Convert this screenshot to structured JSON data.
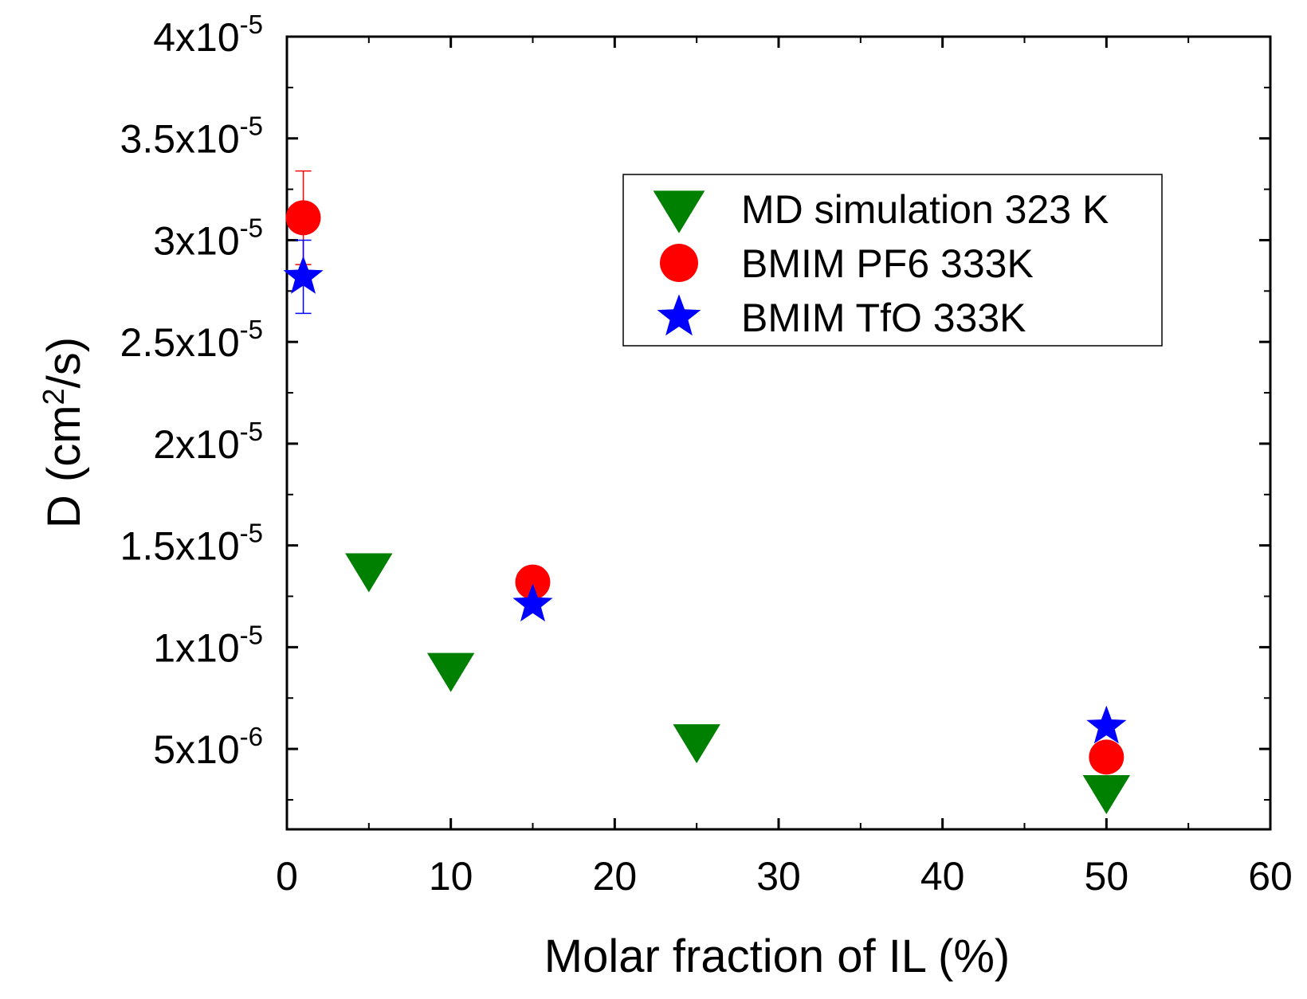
{
  "chart_data": {
    "type": "scatter",
    "xlabel": "Molar fraction of IL (%)",
    "ylabel": "D (cm2/s)",
    "xlim": [
      0,
      60
    ],
    "ylim": [
      1.05e-06,
      4e-05
    ],
    "xticks": [
      0,
      10,
      20,
      30,
      40,
      50,
      60
    ],
    "yticks": [
      {
        "value": 5e-06,
        "label": "5x10-6"
      },
      {
        "value": 1e-05,
        "label": "1x10-5"
      },
      {
        "value": 1.5e-05,
        "label": "1.5x10-5"
      },
      {
        "value": 2e-05,
        "label": "2x10-5"
      },
      {
        "value": 2.5e-05,
        "label": "2.5x10-5"
      },
      {
        "value": 3e-05,
        "label": "3x10-5"
      },
      {
        "value": 3.5e-05,
        "label": "3.5x10-5"
      },
      {
        "value": 4e-05,
        "label": "4x10-5"
      }
    ],
    "legend": "upper right",
    "series": [
      {
        "name": "MD simulation 323 K",
        "color": "#008000",
        "marker": "triangle-down",
        "x": [
          5,
          10,
          25,
          50
        ],
        "values": [
          1.38e-05,
          8.9e-06,
          5.4e-06,
          2.9e-06
        ]
      },
      {
        "name": "BMIM PF6 333K",
        "color": "#ff0000",
        "marker": "circle",
        "x": [
          1,
          15,
          50
        ],
        "values": [
          3.11e-05,
          1.32e-05,
          4.6e-06
        ],
        "errors": [
          2.3e-06,
          null,
          null
        ]
      },
      {
        "name": "BMIM TfO 333K",
        "color": "#0000ff",
        "marker": "star",
        "x": [
          1,
          15,
          50
        ],
        "values": [
          2.82e-05,
          1.21e-05,
          6.1e-06
        ],
        "errors": [
          1.8e-06,
          null,
          null
        ]
      }
    ]
  }
}
